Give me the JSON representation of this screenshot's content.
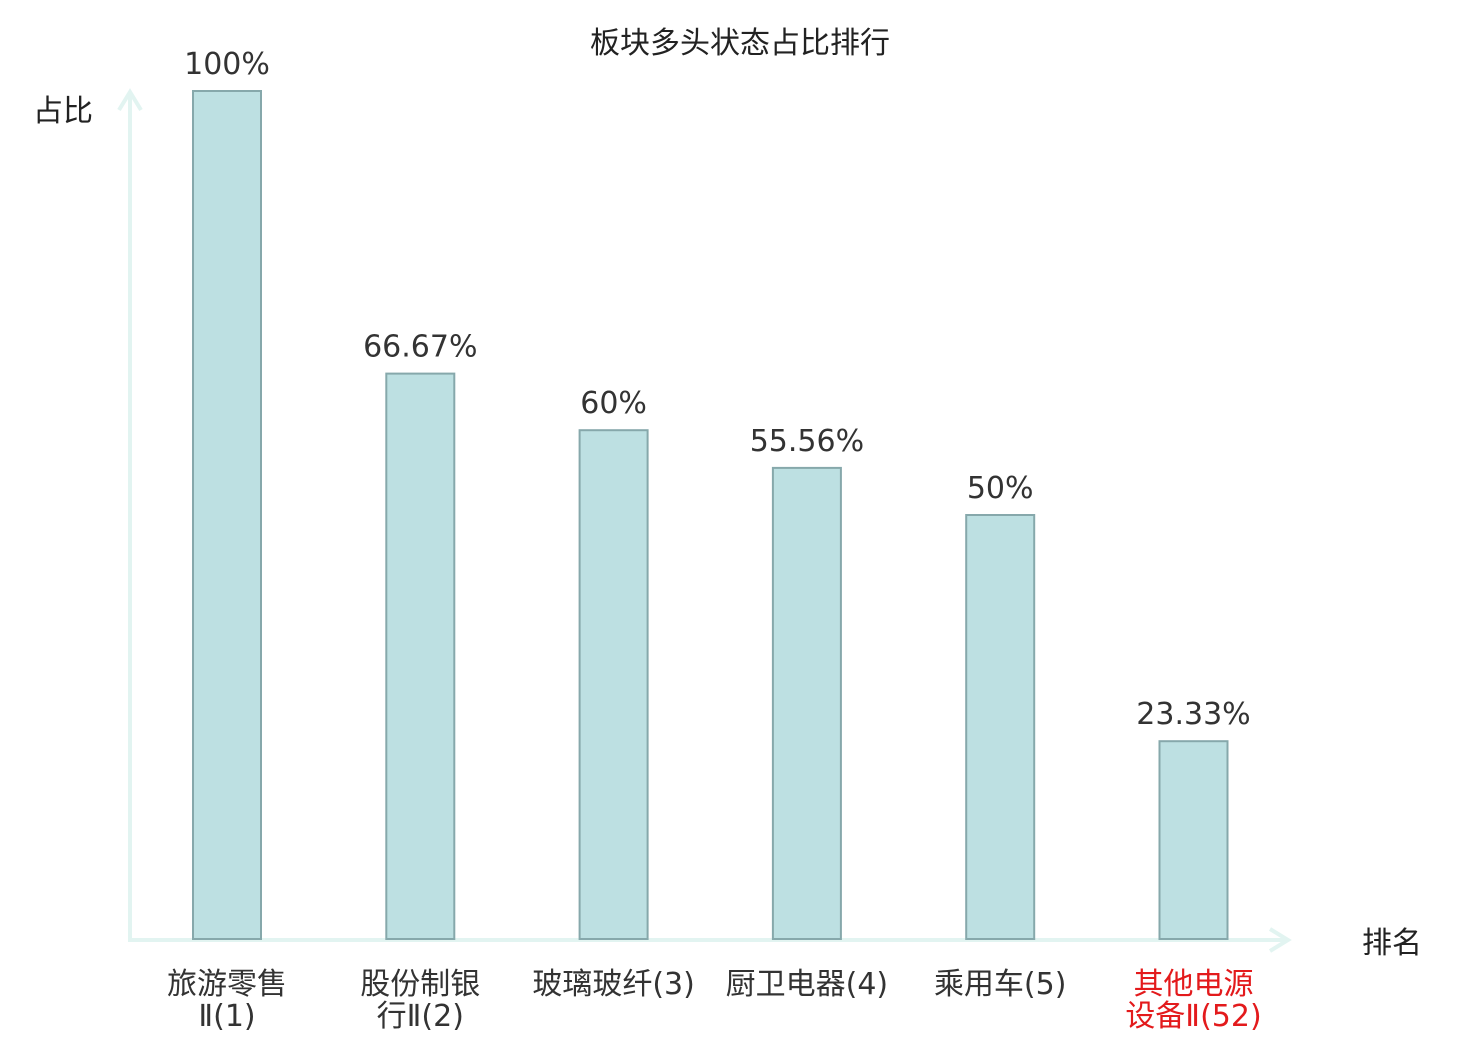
{
  "chart_data": {
    "type": "bar",
    "title": "板块多头状态占比排行",
    "ylabel": "占比",
    "xlabel": "排名",
    "ylim": [
      0,
      100
    ],
    "grid": false,
    "categories": [
      {
        "line1": "旅游零售",
        "line2": "Ⅱ(1)",
        "highlight": false
      },
      {
        "line1": "股份制银",
        "line2": "行Ⅱ(2)",
        "highlight": false
      },
      {
        "line1": "玻璃玻纤(3)",
        "line2": "",
        "highlight": false
      },
      {
        "line1": "厨卫电器(4)",
        "line2": "",
        "highlight": false
      },
      {
        "line1": "乘用车(5)",
        "line2": "",
        "highlight": false
      },
      {
        "line1": "其他电源",
        "line2": "设备Ⅱ(52)",
        "highlight": true
      }
    ],
    "values": [
      100,
      66.67,
      60,
      55.56,
      50,
      23.33
    ],
    "value_labels": [
      "100%",
      "66.67%",
      "60%",
      "55.56%",
      "50%",
      "23.33%"
    ],
    "colors": {
      "bar_fill": "#bde0e2",
      "bar_stroke": "#86a8ab",
      "axis": "#e2f4f1",
      "text": "#333333",
      "highlight_text": "#e31a1c"
    }
  }
}
